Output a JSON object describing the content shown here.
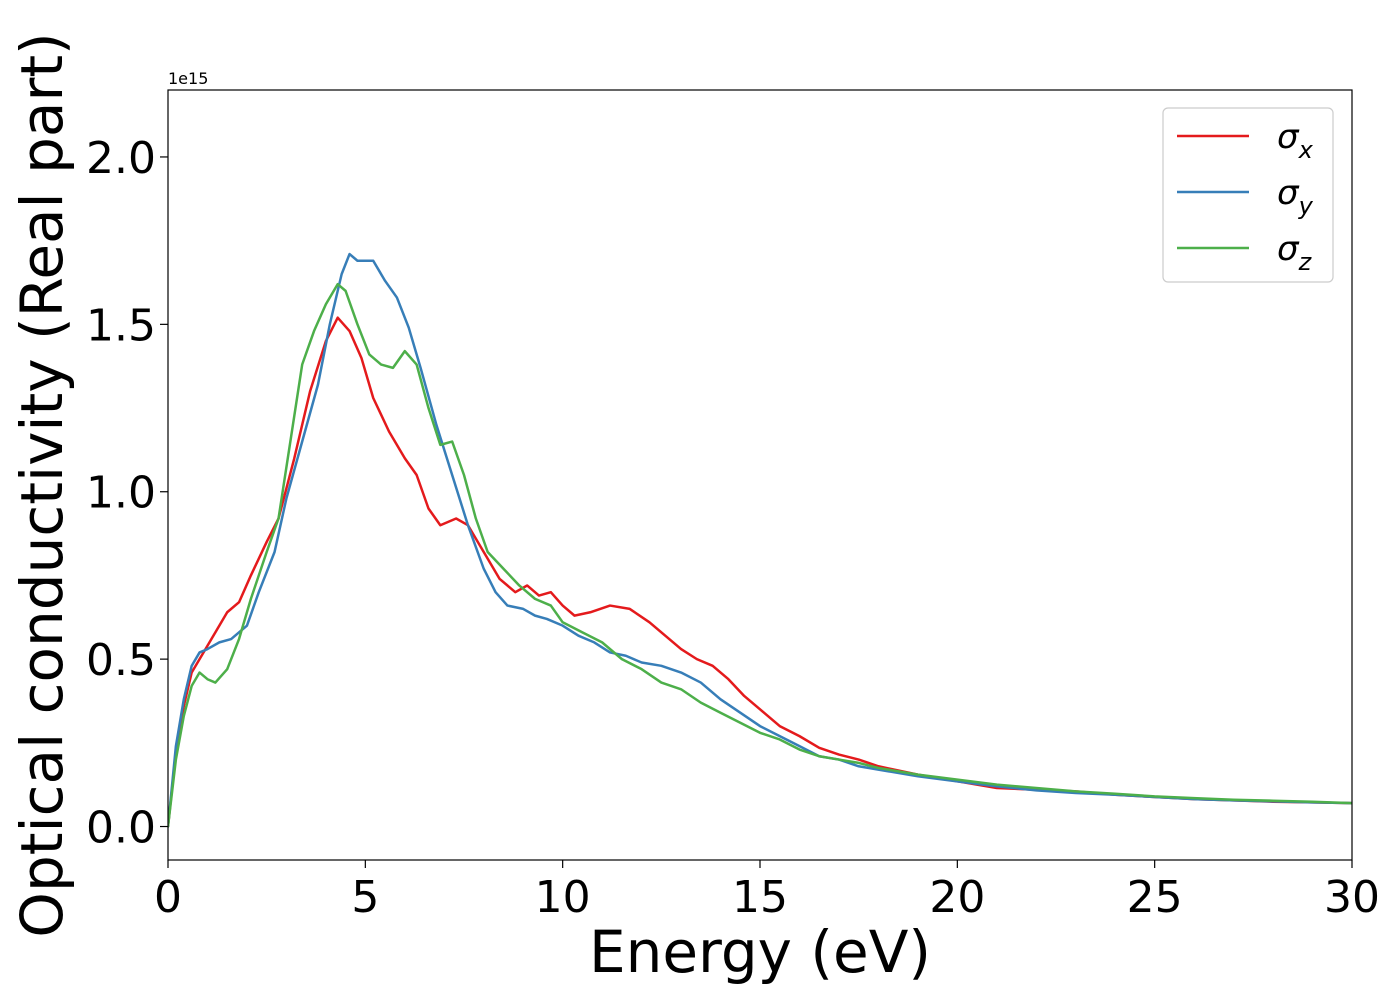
{
  "chart_data": {
    "type": "line",
    "title": "",
    "xlabel": "Energy (eV)",
    "ylabel": "Optical conductivity (Real part)",
    "y_offset_label": "1e15",
    "xlim": [
      0,
      30
    ],
    "ylim": [
      -0.1,
      2.2
    ],
    "xticks": [
      0,
      5,
      10,
      15,
      20,
      25,
      30
    ],
    "xtick_labels": [
      "0",
      "5",
      "10",
      "15",
      "20",
      "25",
      "30"
    ],
    "yticks": [
      0.0,
      0.5,
      1.0,
      1.5,
      2.0
    ],
    "ytick_labels": [
      "0.0",
      "0.5",
      "1.0",
      "1.5",
      "2.0"
    ],
    "grid": false,
    "legend_position": "top-right",
    "series": [
      {
        "name": "σx",
        "name_base": "σ",
        "name_sub": "x",
        "color": "#e41a1c",
        "x": [
          0,
          0.2,
          0.4,
          0.6,
          0.8,
          1.0,
          1.2,
          1.5,
          1.8,
          2.1,
          2.5,
          2.8,
          3.2,
          3.6,
          4.0,
          4.3,
          4.6,
          4.9,
          5.2,
          5.6,
          6.0,
          6.3,
          6.6,
          6.9,
          7.3,
          7.6,
          8.0,
          8.4,
          8.8,
          9.1,
          9.4,
          9.7,
          10.0,
          10.3,
          10.7,
          11.2,
          11.7,
          12.2,
          12.6,
          13.0,
          13.4,
          13.8,
          14.2,
          14.6,
          15.0,
          15.5,
          16.0,
          16.5,
          17.0,
          17.5,
          18.0,
          19.0,
          20.0,
          21.0,
          22.0,
          23.0,
          24.0,
          25.0,
          26.0,
          27.0,
          28.0,
          29.0,
          30.0
        ],
        "y": [
          0.0,
          0.22,
          0.36,
          0.46,
          0.5,
          0.54,
          0.58,
          0.64,
          0.67,
          0.75,
          0.85,
          0.92,
          1.1,
          1.3,
          1.45,
          1.52,
          1.48,
          1.4,
          1.28,
          1.18,
          1.1,
          1.05,
          0.95,
          0.9,
          0.92,
          0.9,
          0.82,
          0.74,
          0.7,
          0.72,
          0.69,
          0.7,
          0.66,
          0.63,
          0.64,
          0.66,
          0.65,
          0.61,
          0.57,
          0.53,
          0.5,
          0.48,
          0.44,
          0.39,
          0.35,
          0.3,
          0.27,
          0.235,
          0.215,
          0.2,
          0.18,
          0.155,
          0.135,
          0.115,
          0.11,
          0.105,
          0.095,
          0.088,
          0.082,
          0.078,
          0.074,
          0.072,
          0.07
        ]
      },
      {
        "name": "σy",
        "name_base": "σ",
        "name_sub": "y",
        "color": "#377eb8",
        "x": [
          0,
          0.2,
          0.4,
          0.6,
          0.8,
          1.0,
          1.3,
          1.6,
          2.0,
          2.3,
          2.7,
          3.0,
          3.4,
          3.8,
          4.1,
          4.4,
          4.6,
          4.8,
          5.0,
          5.2,
          5.5,
          5.8,
          6.1,
          6.4,
          6.8,
          7.2,
          7.6,
          8.0,
          8.3,
          8.6,
          9.0,
          9.3,
          9.6,
          10.0,
          10.4,
          10.8,
          11.2,
          11.6,
          12.0,
          12.5,
          13.0,
          13.5,
          14.0,
          14.5,
          15.0,
          15.5,
          16.0,
          16.5,
          17.0,
          17.5,
          18.0,
          19.0,
          20.0,
          21.0,
          22.0,
          23.0,
          24.0,
          25.0,
          26.0,
          27.0,
          28.0,
          29.0,
          30.0
        ],
        "y": [
          0.0,
          0.24,
          0.38,
          0.48,
          0.52,
          0.53,
          0.55,
          0.56,
          0.6,
          0.7,
          0.82,
          0.98,
          1.15,
          1.32,
          1.5,
          1.65,
          1.71,
          1.69,
          1.69,
          1.69,
          1.63,
          1.58,
          1.49,
          1.37,
          1.2,
          1.05,
          0.9,
          0.77,
          0.7,
          0.66,
          0.65,
          0.63,
          0.62,
          0.6,
          0.57,
          0.55,
          0.52,
          0.51,
          0.49,
          0.48,
          0.46,
          0.43,
          0.38,
          0.34,
          0.3,
          0.27,
          0.24,
          0.21,
          0.2,
          0.18,
          0.17,
          0.15,
          0.135,
          0.12,
          0.108,
          0.1,
          0.095,
          0.088,
          0.082,
          0.078,
          0.075,
          0.072,
          0.07
        ]
      },
      {
        "name": "σz",
        "name_base": "σ",
        "name_sub": "z",
        "color": "#4daf4a",
        "x": [
          0,
          0.2,
          0.4,
          0.6,
          0.8,
          1.0,
          1.2,
          1.5,
          1.8,
          2.1,
          2.5,
          2.8,
          3.1,
          3.4,
          3.7,
          4.0,
          4.3,
          4.5,
          4.8,
          5.1,
          5.4,
          5.7,
          6.0,
          6.3,
          6.6,
          6.9,
          7.2,
          7.5,
          7.8,
          8.1,
          8.5,
          8.9,
          9.3,
          9.7,
          10.0,
          10.5,
          11.0,
          11.5,
          12.0,
          12.5,
          13.0,
          13.5,
          14.0,
          14.5,
          15.0,
          15.5,
          16.0,
          16.5,
          17.0,
          17.5,
          18.0,
          19.0,
          20.0,
          21.0,
          22.0,
          23.0,
          24.0,
          25.0,
          26.0,
          27.0,
          28.0,
          29.0,
          30.0
        ],
        "y": [
          0.0,
          0.2,
          0.33,
          0.42,
          0.46,
          0.44,
          0.43,
          0.47,
          0.56,
          0.68,
          0.82,
          0.92,
          1.15,
          1.38,
          1.48,
          1.56,
          1.62,
          1.6,
          1.5,
          1.41,
          1.38,
          1.37,
          1.42,
          1.38,
          1.25,
          1.14,
          1.15,
          1.05,
          0.92,
          0.82,
          0.77,
          0.72,
          0.68,
          0.66,
          0.61,
          0.58,
          0.55,
          0.5,
          0.47,
          0.43,
          0.41,
          0.37,
          0.34,
          0.31,
          0.28,
          0.26,
          0.23,
          0.21,
          0.2,
          0.19,
          0.175,
          0.155,
          0.14,
          0.125,
          0.115,
          0.105,
          0.098,
          0.09,
          0.085,
          0.08,
          0.077,
          0.074,
          0.07
        ]
      }
    ]
  }
}
